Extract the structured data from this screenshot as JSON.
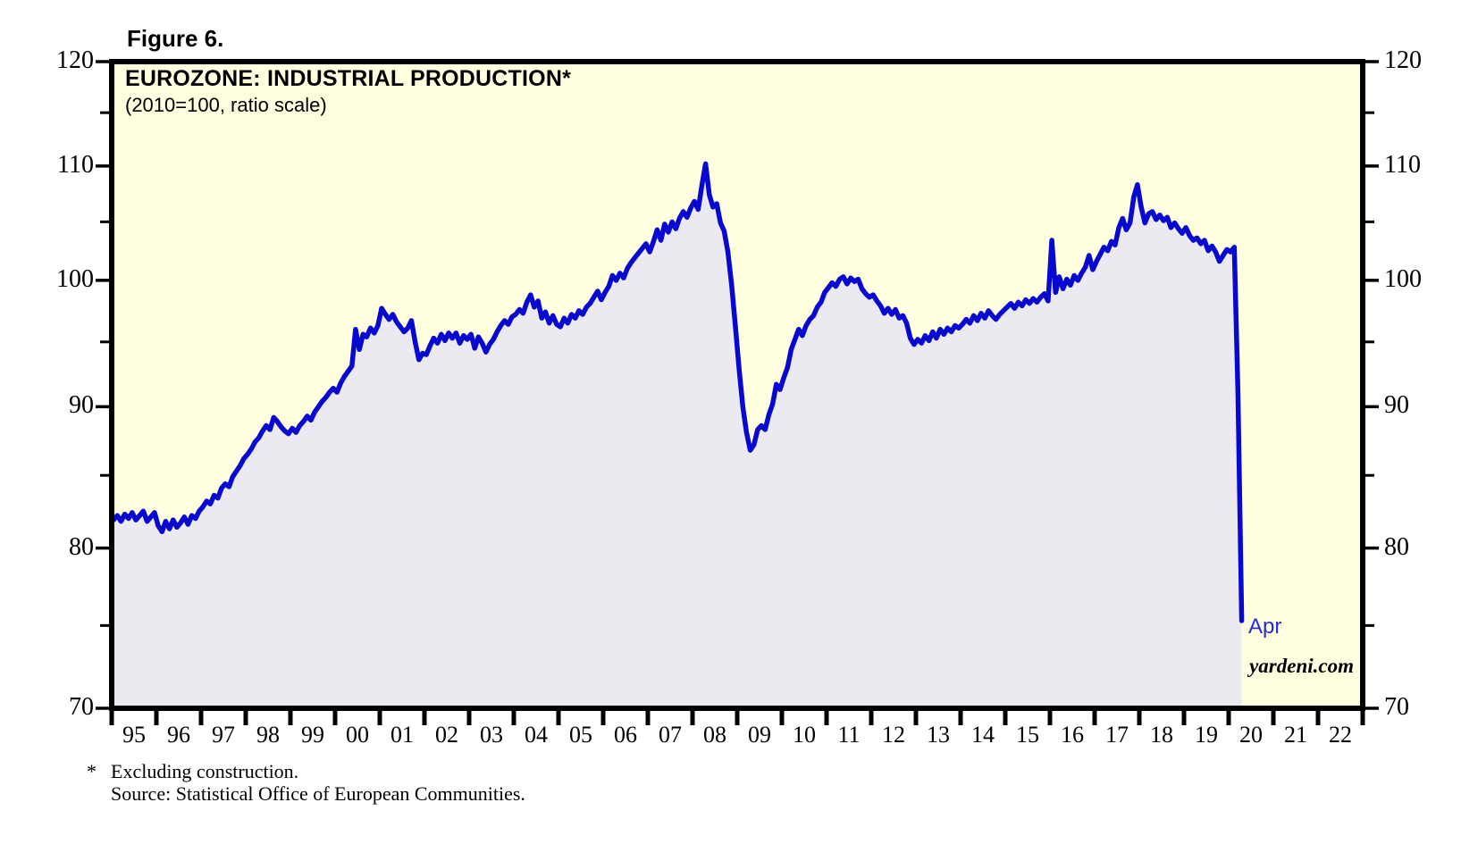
{
  "figure_label": "Figure 6.",
  "chart": {
    "title": "EUROZONE: INDUSTRIAL PRODUCTION*",
    "subtitle": "(2010=100, ratio scale)",
    "watermark": "yardeni.com",
    "annotation_apr": "Apr",
    "colors": {
      "plot_background": "#FFFFE0",
      "area_fill": "#EAEAF0",
      "line": "#0808D0",
      "annotation": "#2B2BD5",
      "axis": "#000000"
    }
  },
  "footnote": {
    "marker": "*",
    "line1": "Excluding construction.",
    "line2": "Source: Statistical Office of European Communities."
  },
  "chart_data": {
    "type": "line",
    "title": "EUROZONE: INDUSTRIAL PRODUCTION*",
    "subtitle": "(2010=100, ratio scale)",
    "grid": false,
    "legend": "none",
    "y_axis": {
      "scale": "log",
      "min": 70,
      "max": 120,
      "major_ticks": [
        70,
        80,
        90,
        100,
        110,
        120
      ],
      "minor_ticks": [
        75,
        85,
        95,
        105,
        115
      ],
      "labels_both_sides": true
    },
    "x_axis": {
      "start_year": 1995,
      "end_year": 2023,
      "labels": [
        "95",
        "96",
        "97",
        "98",
        "99",
        "00",
        "01",
        "02",
        "03",
        "04",
        "05",
        "06",
        "07",
        "08",
        "09",
        "10",
        "11",
        "12",
        "13",
        "14",
        "15",
        "16",
        "17",
        "18",
        "19",
        "20",
        "21",
        "22"
      ]
    },
    "series": [
      {
        "name": "Eurozone industrial production index",
        "frequency": "monthly",
        "start": "1995-01",
        "end": "2020-04",
        "last_point_label": "Apr",
        "last_point_value": 75.3,
        "values": [
          81.9,
          82.2,
          81.8,
          82.3,
          82.0,
          82.4,
          81.9,
          82.2,
          82.5,
          81.8,
          82.1,
          82.4,
          81.5,
          81.1,
          81.8,
          81.3,
          81.9,
          81.4,
          81.7,
          82.1,
          81.6,
          82.2,
          82.0,
          82.5,
          82.8,
          83.2,
          83.0,
          83.6,
          83.4,
          84.1,
          84.4,
          84.2,
          84.9,
          85.3,
          85.7,
          86.2,
          86.5,
          86.9,
          87.4,
          87.7,
          88.2,
          88.6,
          88.3,
          89.2,
          88.9,
          88.5,
          88.2,
          88.0,
          88.4,
          88.1,
          88.6,
          88.9,
          89.3,
          89.0,
          89.6,
          90.0,
          90.4,
          90.7,
          91.1,
          91.4,
          91.1,
          91.8,
          92.3,
          92.7,
          93.1,
          96.0,
          94.4,
          95.6,
          95.4,
          96.1,
          95.7,
          96.3,
          97.7,
          97.2,
          96.8,
          97.2,
          96.6,
          96.2,
          95.8,
          96.1,
          96.7,
          95.0,
          93.6,
          94.1,
          94.0,
          94.7,
          95.3,
          94.9,
          95.6,
          95.1,
          95.7,
          95.3,
          95.7,
          94.9,
          95.5,
          95.2,
          95.6,
          94.5,
          95.4,
          94.9,
          94.2,
          94.8,
          95.2,
          95.8,
          96.3,
          96.7,
          96.4,
          97.0,
          97.2,
          97.6,
          97.3,
          98.2,
          98.8,
          97.8,
          98.3,
          96.9,
          97.4,
          96.5,
          97.1,
          96.4,
          96.2,
          96.9,
          96.5,
          97.2,
          96.9,
          97.5,
          97.2,
          97.8,
          98.1,
          98.6,
          99.1,
          98.4,
          99.0,
          99.5,
          100.4,
          100.0,
          100.6,
          100.2,
          101.0,
          101.5,
          101.9,
          102.3,
          102.7,
          103.1,
          102.4,
          103.3,
          104.3,
          103.4,
          104.8,
          104.1,
          105.0,
          104.4,
          105.3,
          105.9,
          105.4,
          106.2,
          106.8,
          106.1,
          108.2,
          110.2,
          107.4,
          106.3,
          106.6,
          104.9,
          104.2,
          102.4,
          99.6,
          96.3,
          92.9,
          90.0,
          88.1,
          86.8,
          87.2,
          88.3,
          88.6,
          88.3,
          89.4,
          90.2,
          91.7,
          91.3,
          92.2,
          93.0,
          94.4,
          95.2,
          96.0,
          95.5,
          96.3,
          96.8,
          97.1,
          97.8,
          98.2,
          99.0,
          99.4,
          99.8,
          99.5,
          100.1,
          100.3,
          99.7,
          100.2,
          99.9,
          100.1,
          99.3,
          98.9,
          98.6,
          98.8,
          98.3,
          97.9,
          97.3,
          97.7,
          97.2,
          97.6,
          96.9,
          97.1,
          96.5,
          95.3,
          94.8,
          95.2,
          94.9,
          95.5,
          95.1,
          95.8,
          95.3,
          96.0,
          95.6,
          96.1,
          95.8,
          96.3,
          96.1,
          96.4,
          96.8,
          96.5,
          97.1,
          96.7,
          97.3,
          96.9,
          97.5,
          97.1,
          96.8,
          97.2,
          97.5,
          97.8,
          98.1,
          97.7,
          98.2,
          97.9,
          98.4,
          98.1,
          98.5,
          98.2,
          98.6,
          98.9,
          98.3,
          103.4,
          99.0,
          100.3,
          99.3,
          100.1,
          99.6,
          100.4,
          100.0,
          100.6,
          101.1,
          102.1,
          100.9,
          101.6,
          102.2,
          102.8,
          102.5,
          103.3,
          103.0,
          104.5,
          105.3,
          104.3,
          104.9,
          107.2,
          108.3,
          106.3,
          104.9,
          105.7,
          105.9,
          105.2,
          105.6,
          105.1,
          105.4,
          104.5,
          104.9,
          104.4,
          104.0,
          104.5,
          103.8,
          103.4,
          103.6,
          103.1,
          103.4,
          102.5,
          102.9,
          102.4,
          101.6,
          102.1,
          102.6,
          102.4,
          102.8,
          91.0,
          75.3
        ]
      }
    ]
  }
}
